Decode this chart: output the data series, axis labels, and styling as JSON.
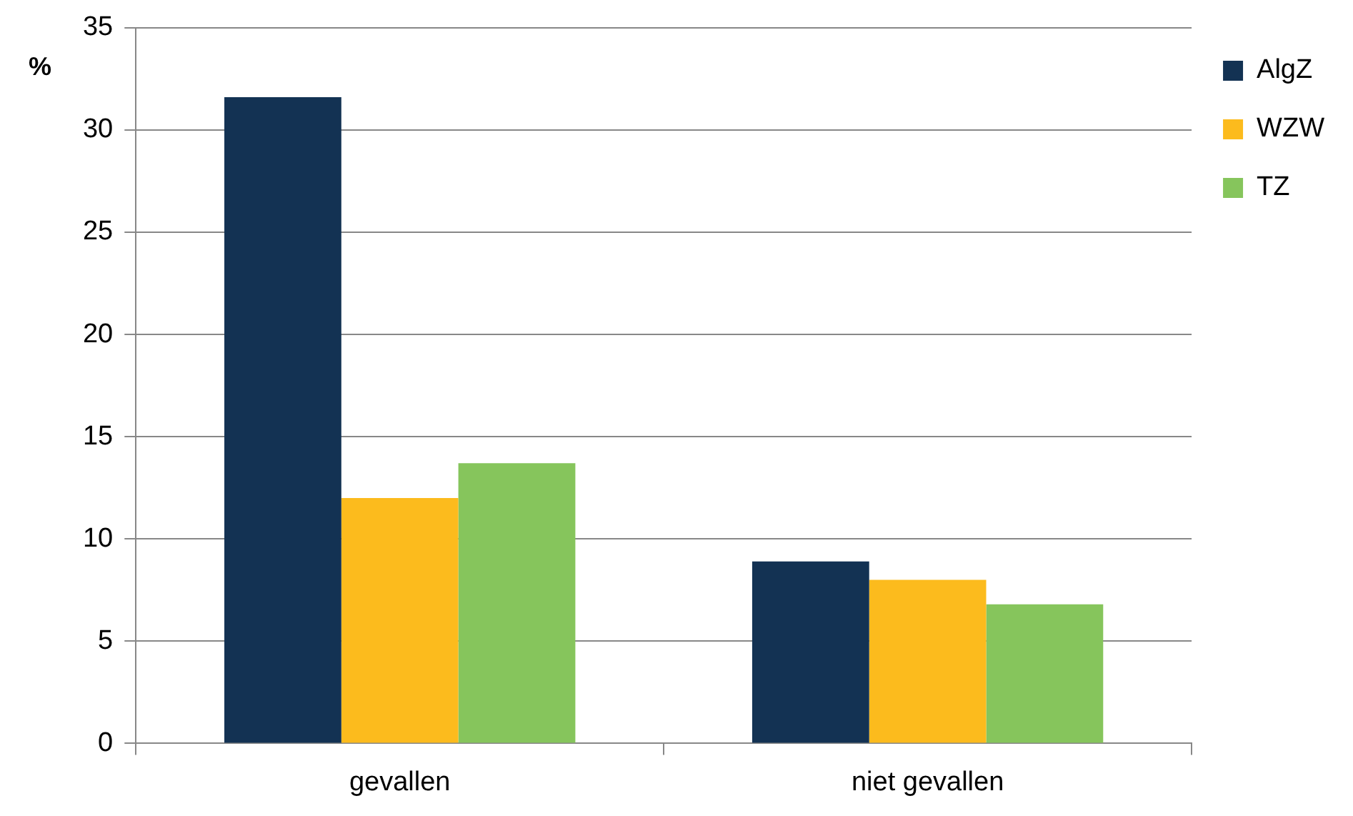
{
  "chart_data": {
    "type": "bar",
    "ylabel": "%",
    "categories": [
      "gevallen",
      "niet gevallen"
    ],
    "series": [
      {
        "name": "AlgZ",
        "color": "#133253",
        "values": [
          31.6,
          8.9
        ]
      },
      {
        "name": "WZW",
        "color": "#fcbb1d",
        "values": [
          12.0,
          8.0
        ]
      },
      {
        "name": "TZ",
        "color": "#86c55c",
        "values": [
          13.7,
          6.8
        ]
      }
    ],
    "ylim": [
      0,
      35
    ],
    "yticks": [
      0,
      5,
      10,
      15,
      20,
      25,
      30,
      35
    ],
    "grid": "y",
    "legend": "top right"
  }
}
